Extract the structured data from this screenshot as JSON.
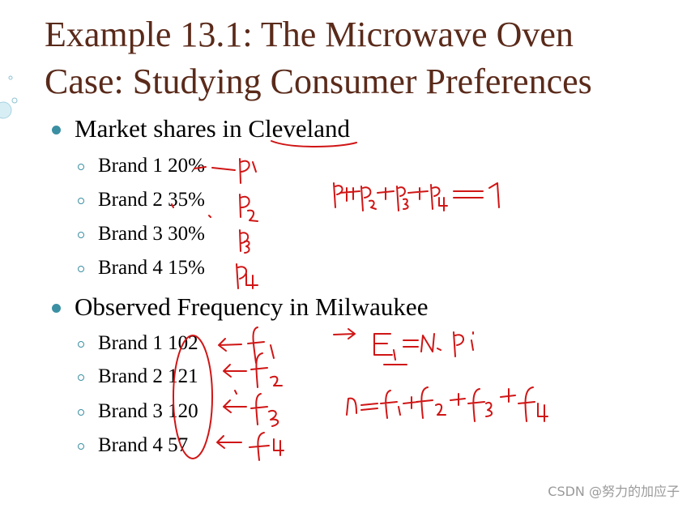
{
  "slide": {
    "title_line1": "Example 13.1: The Microwave Oven",
    "title_line2": "Case: Studying Consumer Preferences",
    "section1": {
      "heading": "Market shares in Cleveland",
      "items": [
        "Brand 1 20%",
        "Brand 2 35%",
        "Brand 3 30%",
        "Brand 4 15%"
      ]
    },
    "section2": {
      "heading": "Observed Frequency in Milwaukee",
      "items": [
        "Brand 1 102",
        "Brand 2 121",
        "Brand 3 120",
        "Brand 4 57"
      ]
    }
  },
  "watermark": "CSDN @努力的加应子",
  "colors": {
    "title": "#5a2a1a",
    "bullet": "#3b8fa3",
    "ink": "#d01515"
  }
}
